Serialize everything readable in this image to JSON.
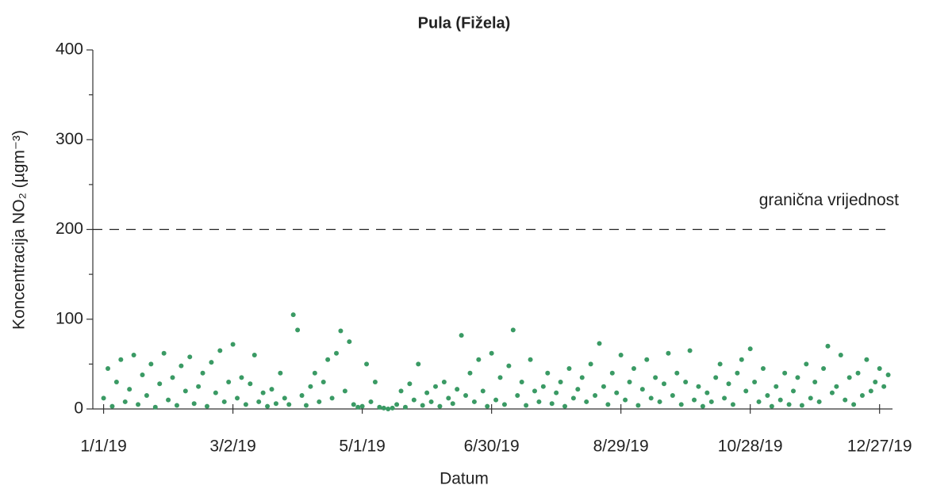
{
  "chart_data": {
    "type": "scatter",
    "title": "Pula (Fižela)",
    "x_label": "Datum",
    "y_label": "Koncentracija NO₂ (µgm⁻³)",
    "threshold": 200,
    "threshold_label": "granična vrijednost",
    "color": "#3a9a64",
    "xlim": [
      -5,
      366
    ],
    "xticks": [
      {
        "value": 0,
        "label": "1/1/19"
      },
      {
        "value": 60,
        "label": "3/2/19"
      },
      {
        "value": 120,
        "label": "5/1/19"
      },
      {
        "value": 180,
        "label": "6/30/19"
      },
      {
        "value": 240,
        "label": "8/29/19"
      },
      {
        "value": 300,
        "label": "10/28/19"
      },
      {
        "value": 360,
        "label": "12/27/19"
      }
    ],
    "ylim": [
      0,
      400
    ],
    "yticks": [
      0,
      100,
      200,
      300,
      400
    ],
    "yminorticks": [
      50,
      150,
      250,
      350
    ],
    "x": [
      0,
      2,
      4,
      6,
      8,
      10,
      12,
      14,
      16,
      18,
      20,
      22,
      24,
      26,
      28,
      30,
      32,
      34,
      36,
      38,
      40,
      42,
      44,
      46,
      48,
      50,
      52,
      54,
      56,
      58,
      60,
      62,
      64,
      66,
      68,
      70,
      72,
      74,
      76,
      78,
      80,
      82,
      84,
      86,
      88,
      90,
      92,
      94,
      96,
      98,
      100,
      102,
      104,
      106,
      108,
      110,
      112,
      114,
      116,
      118,
      120,
      122,
      124,
      126,
      128,
      130,
      132,
      134,
      136,
      138,
      140,
      142,
      144,
      146,
      148,
      150,
      152,
      154,
      156,
      158,
      160,
      162,
      164,
      166,
      168,
      170,
      172,
      174,
      176,
      178,
      180,
      182,
      184,
      186,
      188,
      190,
      192,
      194,
      196,
      198,
      200,
      202,
      204,
      206,
      208,
      210,
      212,
      214,
      216,
      218,
      220,
      222,
      224,
      226,
      228,
      230,
      232,
      234,
      236,
      238,
      240,
      242,
      244,
      246,
      248,
      250,
      252,
      254,
      256,
      258,
      260,
      262,
      264,
      266,
      268,
      270,
      272,
      274,
      276,
      278,
      280,
      282,
      284,
      286,
      288,
      290,
      292,
      294,
      296,
      298,
      300,
      302,
      304,
      306,
      308,
      310,
      312,
      314,
      316,
      318,
      320,
      322,
      324,
      326,
      328,
      330,
      332,
      334,
      336,
      338,
      340,
      342,
      344,
      346,
      348,
      350,
      352,
      354,
      356,
      358,
      360,
      362,
      364
    ],
    "y": [
      12,
      45,
      3,
      30,
      55,
      8,
      22,
      60,
      5,
      38,
      15,
      50,
      2,
      28,
      62,
      10,
      35,
      4,
      48,
      20,
      58,
      6,
      25,
      40,
      3,
      52,
      18,
      65,
      8,
      30,
      72,
      12,
      35,
      5,
      28,
      60,
      8,
      18,
      3,
      22,
      6,
      40,
      12,
      5,
      105,
      88,
      15,
      4,
      25,
      40,
      8,
      30,
      55,
      12,
      62,
      87,
      20,
      75,
      5,
      2,
      3,
      50,
      8,
      30,
      2,
      1,
      0,
      1,
      5,
      20,
      2,
      28,
      10,
      50,
      4,
      18,
      8,
      25,
      3,
      30,
      12,
      6,
      22,
      82,
      15,
      40,
      8,
      55,
      20,
      3,
      62,
      10,
      35,
      5,
      48,
      88,
      15,
      30,
      4,
      55,
      20,
      8,
      25,
      40,
      6,
      18,
      30,
      3,
      45,
      12,
      22,
      35,
      8,
      50,
      15,
      73,
      25,
      5,
      40,
      18,
      60,
      10,
      30,
      45,
      4,
      22,
      55,
      12,
      35,
      8,
      28,
      62,
      15,
      40,
      5,
      30,
      65,
      10,
      25,
      3,
      18,
      8,
      35,
      50,
      12,
      28,
      5,
      40,
      55,
      20,
      67,
      30,
      8,
      45,
      15,
      3,
      25,
      10,
      40,
      5,
      20,
      35,
      4,
      50,
      12,
      30,
      8,
      45,
      70,
      18,
      25,
      60,
      10,
      35,
      5,
      40,
      15,
      55,
      20,
      30,
      45,
      25,
      38
    ]
  }
}
